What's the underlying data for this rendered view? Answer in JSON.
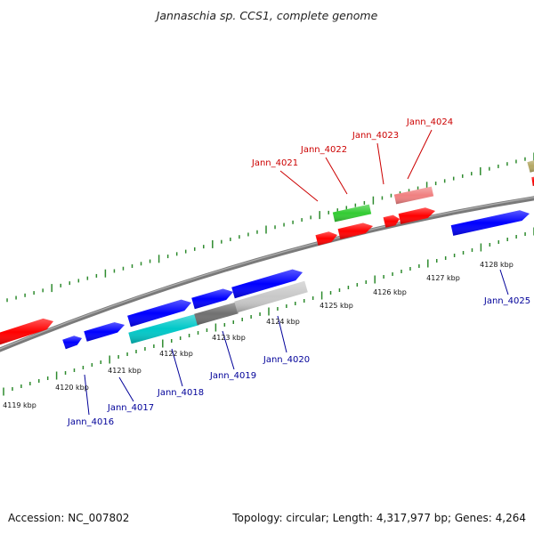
{
  "title": "Jannaschia sp. CCS1, complete genome",
  "accession": "Accession: NC_007802",
  "summary": "Topology: circular; Length: 4,317,977 bp; Genes: 4,264",
  "colors": {
    "backbone": "#808080",
    "tick": "#2e8b2e",
    "red": "#ff0000",
    "blue": "#0000ff",
    "green": "#33cc33",
    "pink": "#f08080",
    "cyan": "#00c8c8",
    "dark_gray": "#707070",
    "light_gray": "#c8c8c8",
    "olive": "#b4a864",
    "label_red": "#cc0000",
    "label_blue": "#000099"
  },
  "scale_labels": [
    "4119 kbp",
    "4120 kbp",
    "4121 kbp",
    "4122 kbp",
    "4123 kbp",
    "4124 kbp",
    "4125 kbp",
    "4126 kbp",
    "4127 kbp",
    "4128 kbp"
  ],
  "gene_labels_top": [
    "Jann_4021",
    "Jann_4022",
    "Jann_4023",
    "Jann_4024"
  ],
  "gene_labels_bottom": [
    "Jann_4016",
    "Jann_4017",
    "Jann_4018",
    "Jann_4019",
    "Jann_4020",
    "Jann_4025"
  ]
}
